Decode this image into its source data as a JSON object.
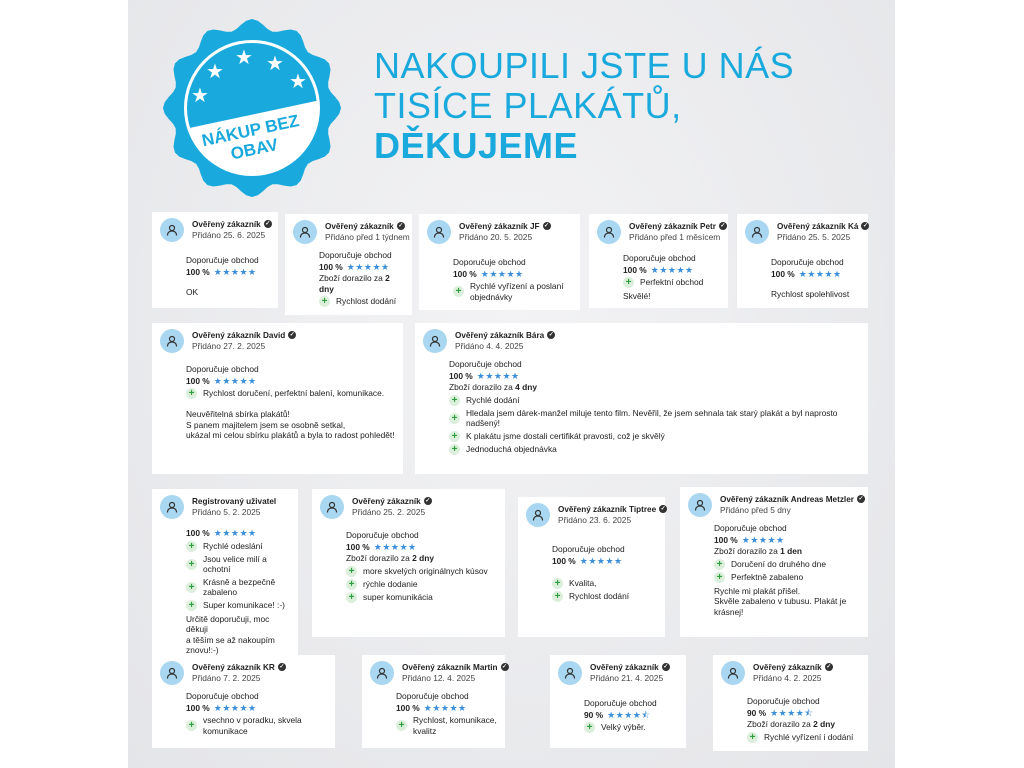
{
  "badge": {
    "text_line1": "NÁKUP BEZ",
    "text_line2": "OBAV",
    "color": "#1aa9dc"
  },
  "headline": {
    "line1": "NAKOUPILI JSTE U NÁS",
    "line2": "TISÍCE PLAKÁTŮ,",
    "line3": "DĚKUJEME",
    "color": "#1aa9dc"
  },
  "reviews": [
    {
      "name": "Ověřený zákazník",
      "verified": true,
      "date": "Přidáno 25. 6. 2025",
      "recommend": "Doporučuje obchod",
      "percent": "100 %",
      "rating": 5,
      "pros": [],
      "text": [
        "OK"
      ]
    },
    {
      "name": "Ověřený zákazník",
      "verified": true,
      "date": "Přidáno před 1 týdnem",
      "recommend": "Doporučuje obchod",
      "percent": "100 %",
      "rating": 5,
      "delivery": "Zboží dorazilo za ",
      "delivery_bold": "2 dny",
      "pros": [
        "Rychlost dodání"
      ],
      "text": []
    },
    {
      "name": "Ověřený zákazník JF",
      "verified": true,
      "date": "Přidáno 20. 5. 2025",
      "recommend": "Doporučuje obchod",
      "percent": "100 %",
      "rating": 5,
      "pros": [
        "Rychlé vyřízení a poslaní objednávky"
      ],
      "text": []
    },
    {
      "name": "Ověřený zákazník Petr",
      "verified": true,
      "date": "Přidáno před 1 měsícem",
      "recommend": "Doporučuje obchod",
      "percent": "100 %",
      "rating": 5,
      "pros": [
        "Perfektní obchod"
      ],
      "text": [
        "Skvělé!"
      ]
    },
    {
      "name": "Ověřený zákazník Ká",
      "verified": true,
      "date": "Přidáno 25. 5. 2025",
      "recommend": "Doporučuje obchod",
      "percent": "100 %",
      "rating": 5,
      "pros": [],
      "text": [
        "Rychlost spolehlivost"
      ]
    },
    {
      "name": "Ověřený zákazník David",
      "verified": true,
      "date": "Přidáno 27. 2. 2025",
      "recommend": "Doporučuje obchod",
      "percent": "100 %",
      "rating": 5,
      "pros": [
        "Rychlost doručení, perfektní balení, komunikace."
      ],
      "text": [
        "Neuvěřitelná sbírka plakátů!",
        "S panem majitelem jsem se osobně setkal,",
        "ukázal mi celou sbírku plakátů a byla to radost pohledět!"
      ]
    },
    {
      "name": "Ověřený zákazník Bára",
      "verified": true,
      "date": "Přidáno 4. 4. 2025",
      "recommend": "Doporučuje obchod",
      "percent": "100 %",
      "rating": 5,
      "delivery": "Zboží dorazilo za ",
      "delivery_bold": "4 dny",
      "pros": [
        "Rychlé dodání",
        "Hledala jsem dárek-manžel miluje tento film. Nevěřil, že jsem sehnala tak starý plakát a byl naprosto nadšený!",
        "K plakátu jsme dostali certifikát pravosti, což je skvělý",
        "Jednoduchá objednávka"
      ],
      "text": []
    },
    {
      "name": "Registrovaný uživatel",
      "verified": false,
      "date": "Přidáno 5. 2. 2025",
      "percent": "100 %",
      "rating": 5,
      "pros": [
        "Rychlé odeslání",
        "Jsou velice milí a ochotní",
        "Krásně a bezpečně zabaleno",
        "Super komunikace! :-)"
      ],
      "text": [
        "Určitě doporučuji, moc děkuji",
        "a těším se až nakoupím znovu!:-)"
      ]
    },
    {
      "name": "Ověřený zákazník",
      "verified": true,
      "date": "Přidáno 25. 2. 2025",
      "recommend": "Doporučuje obchod",
      "percent": "100 %",
      "rating": 5,
      "delivery": "Zboží dorazilo za ",
      "delivery_bold": "2 dny",
      "pros": [
        "more skvelých originálnych kúsov",
        "rýchle dodanie",
        "super komunikácia"
      ],
      "text": []
    },
    {
      "name": "Ověřený zákazník Tiptree",
      "verified": true,
      "date": "Přidáno 23. 6. 2025",
      "recommend": "Doporučuje obchod",
      "percent": "100 %",
      "rating": 5,
      "pros": [
        "Kvalita,",
        "Rychlost dodání"
      ],
      "text": []
    },
    {
      "name": "Ověřený zákazník Andreas Metzler",
      "verified": true,
      "date": "Přidáno před 5 dny",
      "recommend": "Doporučuje obchod",
      "percent": "100 %",
      "rating": 5,
      "delivery": "Zboží dorazilo za ",
      "delivery_bold": "1 den",
      "pros": [
        "Doručení do druhého dne",
        "Perfektně zabaleno"
      ],
      "text": [
        "Rychle mi plakát přišel.",
        "Skvěle zabaleno v tubusu. Plakát je krásnej!"
      ]
    },
    {
      "name": "Ověřený zákazník KR",
      "verified": true,
      "date": "Přidáno 7. 2. 2025",
      "recommend": "Doporučuje obchod",
      "percent": "100 %",
      "rating": 5,
      "pros": [
        "vsechno v poradku, skvela komunikace"
      ],
      "text": []
    },
    {
      "name": "Ověřený zákazník Martin",
      "verified": true,
      "date": "Přidáno 12. 4. 2025",
      "recommend": "Doporučuje obchod",
      "percent": "100 %",
      "rating": 5,
      "pros": [
        "Rychlost, komunikace, kvalitz"
      ],
      "text": []
    },
    {
      "name": "Ověřený zákazník",
      "verified": true,
      "date": "Přidáno 21. 4. 2025",
      "recommend": "Doporučuje obchod",
      "percent": "90 %",
      "rating": 4.5,
      "pros": [
        "Velký výběr."
      ],
      "text": []
    },
    {
      "name": "Ověřený zákazník",
      "verified": true,
      "date": "Přidáno 4. 2. 2025",
      "recommend": "Doporučuje obchod",
      "percent": "90 %",
      "rating": 4.5,
      "delivery": "Zboží dorazilo za ",
      "delivery_bold": "2 dny",
      "pros": [
        "Rychlé vyřízení i dodání"
      ],
      "text": []
    }
  ]
}
